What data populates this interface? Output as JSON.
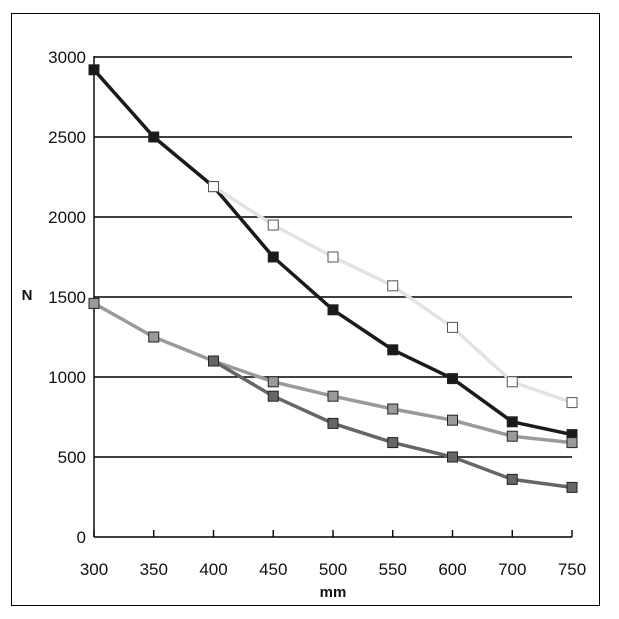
{
  "chart_data": {
    "type": "line",
    "title": "",
    "xlabel": "mm",
    "ylabel": "N",
    "categories": [
      "300",
      "350",
      "400",
      "450",
      "500",
      "550",
      "600",
      "700",
      "750"
    ],
    "ylim": [
      0,
      3000
    ],
    "yticks": [
      "0",
      "500",
      "1000",
      "1500",
      "2000",
      "2500",
      "3000"
    ],
    "grid": "horizontal",
    "series": [
      {
        "color": "#1a1a1a",
        "marker": "filled-square",
        "values": [
          2920,
          2500,
          2190,
          1750,
          1420,
          1170,
          990,
          720,
          640
        ]
      },
      {
        "color": "#e3e3e3",
        "marker": "open-square",
        "values": [
          null,
          null,
          2190,
          1950,
          1750,
          1570,
          1310,
          970,
          840
        ]
      },
      {
        "color": "#9a9a9a",
        "marker": "filled-square",
        "values": [
          1460,
          1250,
          1100,
          970,
          880,
          800,
          730,
          630,
          590
        ]
      },
      {
        "color": "#666666",
        "marker": "filled-square",
        "values": [
          null,
          null,
          1100,
          880,
          710,
          590,
          500,
          360,
          310
        ]
      }
    ]
  }
}
